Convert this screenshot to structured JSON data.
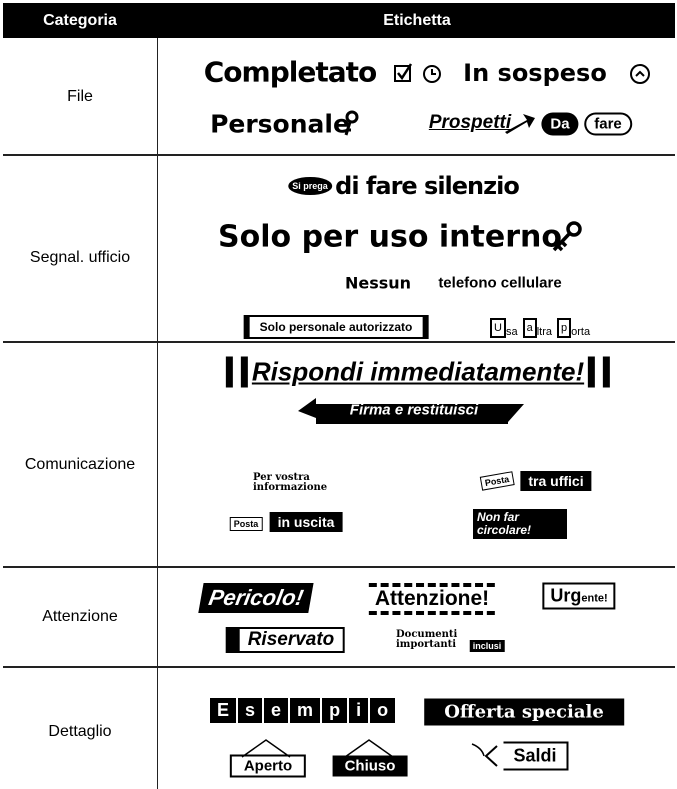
{
  "header": {
    "category": "Categoria",
    "label": "Etichetta"
  },
  "rows": [
    {
      "category": "File",
      "labels": [
        "Completato",
        "In sospeso",
        "Personale",
        "Prospetti",
        "Da",
        "fare"
      ]
    },
    {
      "category": "Segnal. ufficio",
      "labels": [
        "Si prega",
        "di fare silenzio",
        "Solo per uso interno",
        "Nessun",
        "telefono cellulare",
        "Solo personale autorizzato",
        "U",
        "sa",
        "a",
        "ltra",
        "p",
        "orta"
      ]
    },
    {
      "category": "Comunicazione",
      "labels": [
        "Rispondi immediatamente!",
        "Firma e restituisci",
        "Per vostra informazione",
        "Posta",
        "tra uffici",
        "Posta",
        "in uscita",
        "Non far circolare!"
      ]
    },
    {
      "category": "Attenzione",
      "labels": [
        "Pericolo!",
        "Attenzione!",
        "Urg",
        "ente!",
        "Riservato",
        "Documenti importanti",
        "inclusi"
      ]
    },
    {
      "category": "Dettaglio",
      "labels": [
        "E",
        "s",
        "e",
        "m",
        "p",
        "i",
        "o",
        "Offerta speciale",
        "Aperto",
        "Chiuso",
        "Saldi"
      ]
    }
  ]
}
